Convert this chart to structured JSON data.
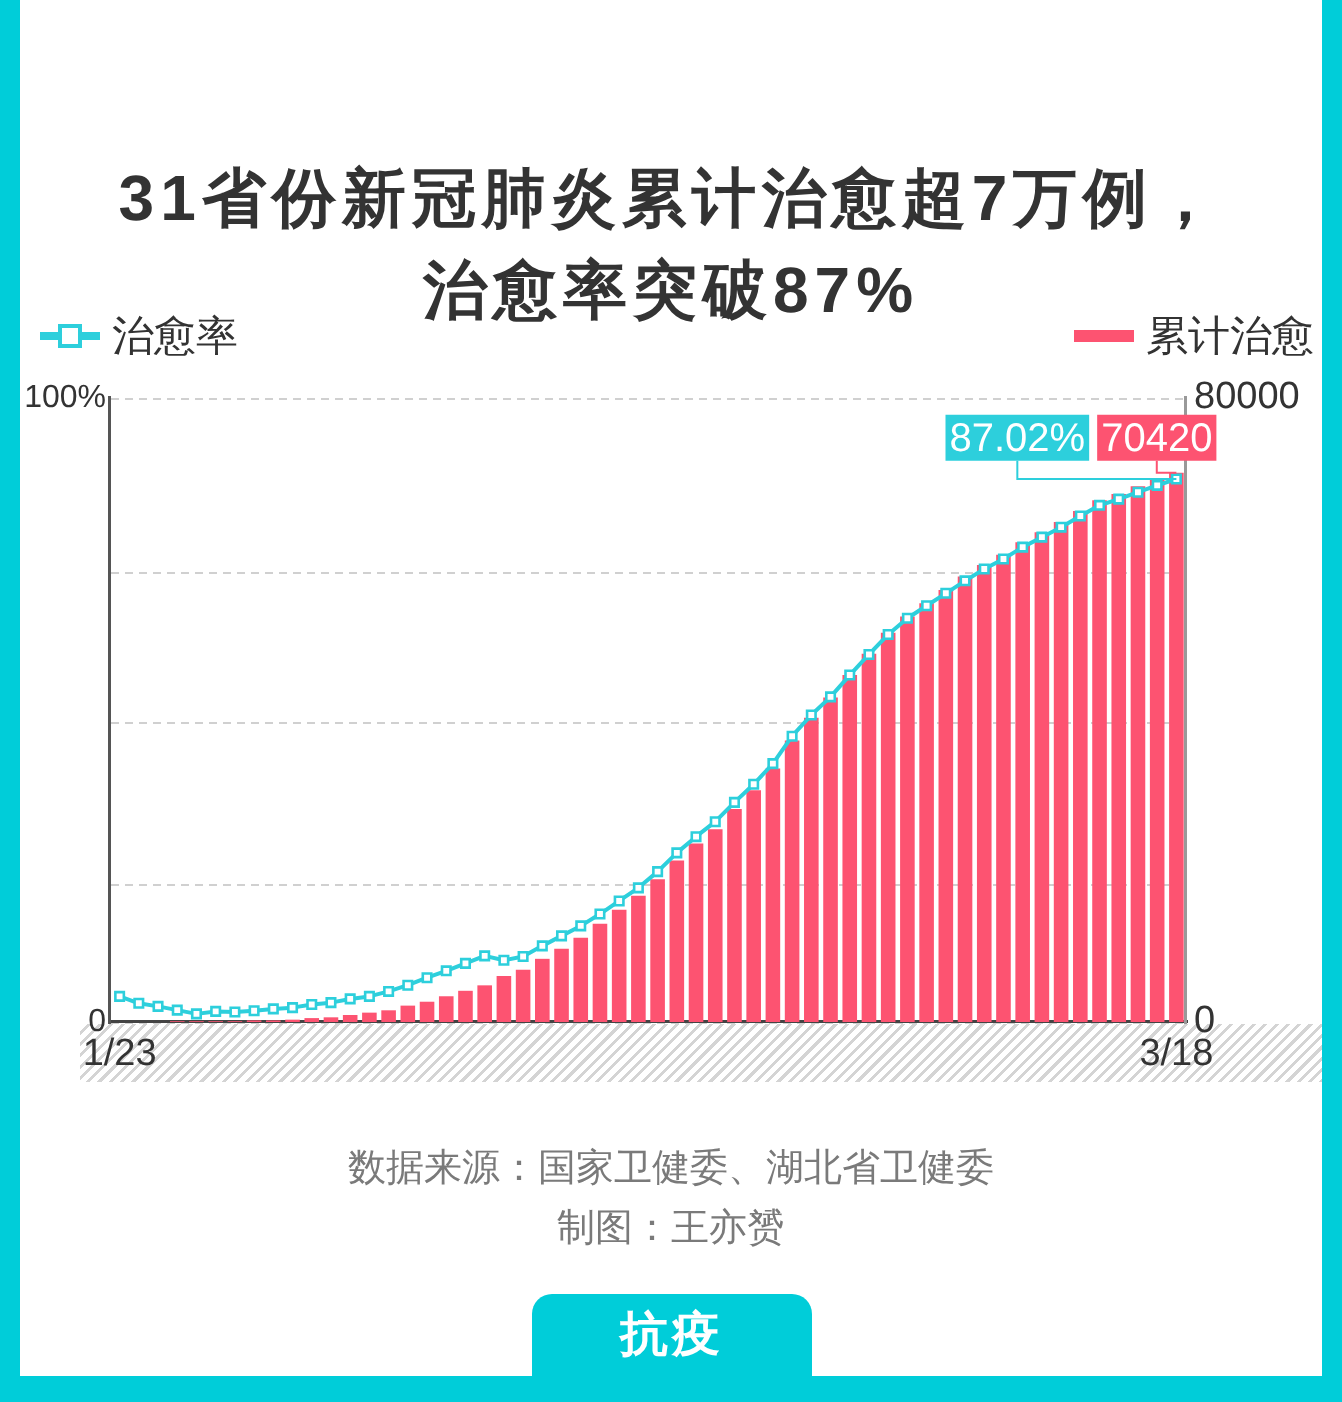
{
  "chart_data": {
    "type": "bar",
    "title": "31省份新冠肺炎累计治愈超7万例，治愈率突破87%",
    "categories": [
      "1/23",
      null,
      null,
      null,
      null,
      null,
      null,
      null,
      null,
      null,
      null,
      null,
      null,
      null,
      null,
      null,
      null,
      null,
      null,
      null,
      null,
      null,
      null,
      null,
      null,
      null,
      null,
      null,
      null,
      null,
      null,
      null,
      null,
      null,
      null,
      null,
      null,
      null,
      null,
      null,
      null,
      null,
      null,
      null,
      null,
      null,
      null,
      null,
      null,
      null,
      null,
      null,
      null,
      null,
      null,
      "3/18"
    ],
    "series": [
      {
        "name": "治愈率",
        "type": "line",
        "color": "#2dcfdc",
        "values": [
          4.1,
          3.0,
          2.5,
          1.9,
          1.3,
          1.7,
          1.6,
          1.8,
          2.1,
          2.3,
          2.8,
          3.1,
          3.7,
          4.1,
          4.9,
          5.9,
          7.1,
          8.2,
          9.4,
          10.6,
          9.9,
          10.5,
          12.2,
          13.8,
          15.4,
          17.3,
          19.4,
          21.5,
          24.1,
          27.1,
          29.7,
          32.1,
          35.2,
          38.1,
          41.4,
          45.8,
          49.2,
          52.1,
          55.6,
          58.9,
          62.1,
          64.7,
          66.7,
          68.7,
          70.7,
          72.6,
          74.2,
          76.1,
          77.7,
          79.3,
          81.1,
          82.8,
          83.8,
          84.9,
          86.0,
          87.02
        ],
        "value_labels": [
          null,
          null,
          null,
          null,
          null,
          null,
          null,
          null,
          null,
          null,
          null,
          null,
          null,
          null,
          null,
          null,
          null,
          null,
          null,
          null,
          null,
          null,
          null,
          null,
          null,
          null,
          null,
          null,
          null,
          null,
          null,
          null,
          null,
          null,
          null,
          null,
          null,
          null,
          null,
          null,
          null,
          null,
          null,
          null,
          null,
          null,
          null,
          null,
          null,
          null,
          null,
          null,
          null,
          null,
          null,
          "87.02%"
        ]
      },
      {
        "name": "累计治愈",
        "color": "#fd5371",
        "axis": "y2",
        "values": [
          0,
          0,
          0,
          100,
          100,
          100,
          100,
          200,
          200,
          300,
          500,
          600,
          900,
          1200,
          1500,
          2100,
          2600,
          3300,
          4000,
          4700,
          5900,
          6700,
          8100,
          9400,
          10800,
          12600,
          14400,
          16200,
          18300,
          20700,
          22900,
          24700,
          27300,
          29700,
          32500,
          36100,
          39000,
          41600,
          44500,
          47200,
          49900,
          52000,
          53700,
          55400,
          57100,
          58600,
          59900,
          61500,
          62800,
          64100,
          65500,
          66900,
          67700,
          68700,
          69600,
          70420
        ],
        "value_labels": [
          null,
          null,
          null,
          null,
          null,
          null,
          null,
          null,
          null,
          null,
          null,
          null,
          null,
          null,
          null,
          null,
          null,
          null,
          null,
          null,
          null,
          null,
          null,
          null,
          null,
          null,
          null,
          null,
          null,
          null,
          null,
          null,
          null,
          null,
          null,
          null,
          null,
          null,
          null,
          null,
          null,
          null,
          null,
          null,
          null,
          null,
          null,
          null,
          null,
          null,
          null,
          null,
          null,
          null,
          null,
          "70420"
        ]
      }
    ],
    "ylim": [
      0,
      100
    ],
    "yticks": [
      0,
      {
        "value": 22,
        "label": null
      },
      {
        "value": 48,
        "label": null
      },
      {
        "value": 72,
        "label": null
      },
      {
        "value": 100,
        "label": "100%"
      }
    ],
    "y2lim": [
      0,
      80000
    ],
    "y2ticks": [
      0,
      80000
    ],
    "grid": "y",
    "legend": "top",
    "marker": "square",
    "annotations": [
      "数据来源：国家卫健委、湖北省卫健委",
      "制图：王亦赟",
      "抗疫"
    ]
  }
}
